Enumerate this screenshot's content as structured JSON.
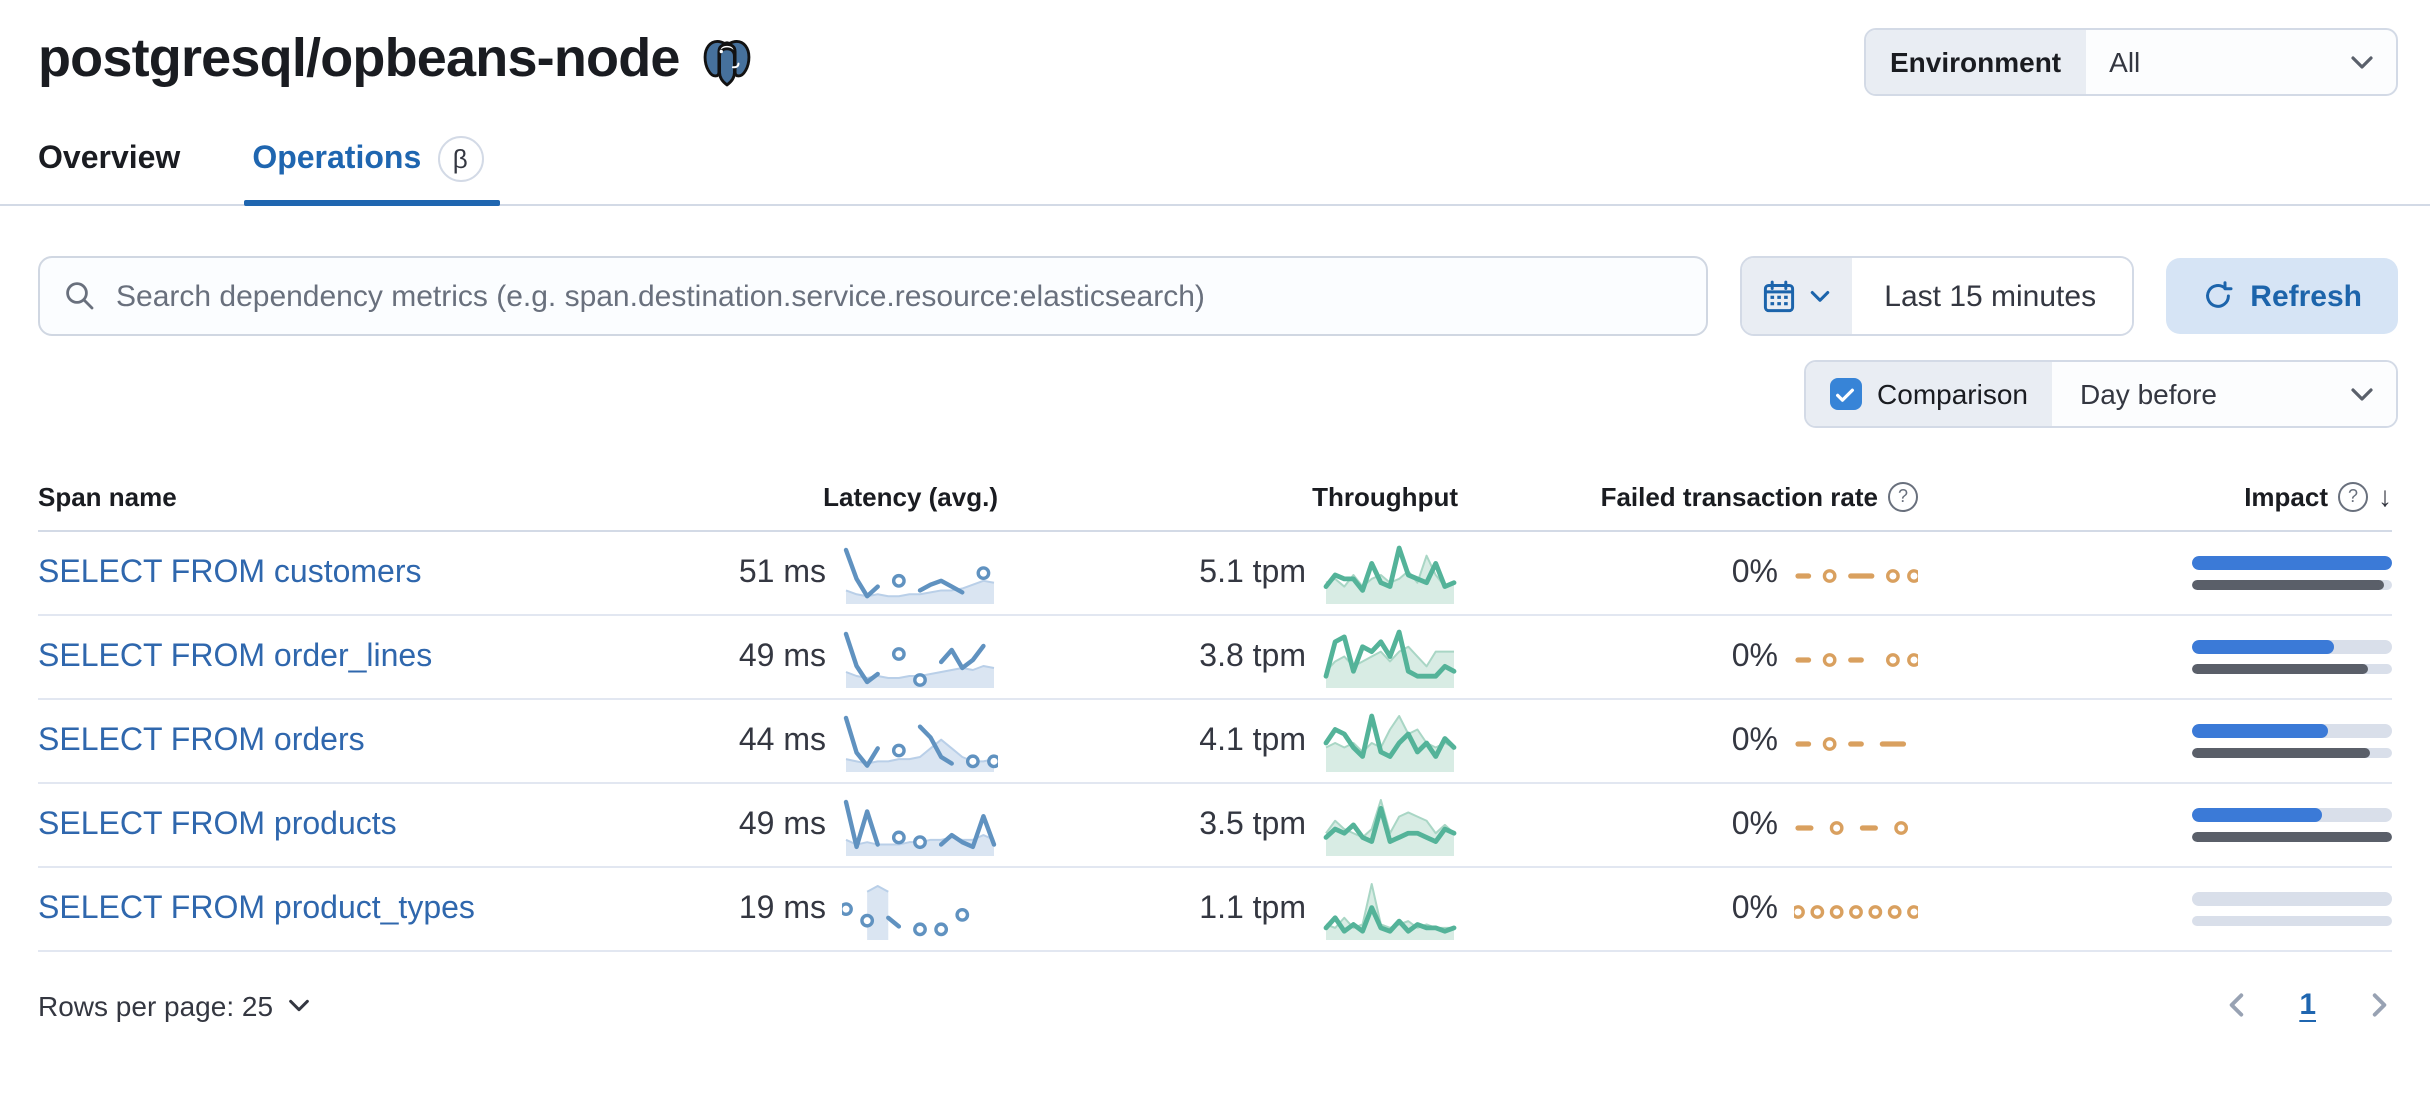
{
  "page": {
    "title": "postgresql/opbeans-node",
    "icon": "postgresql-elephant"
  },
  "header": {
    "environment_label": "Environment",
    "environment_value": "All"
  },
  "tabs": [
    {
      "label": "Overview",
      "active": false
    },
    {
      "label": "Operations",
      "active": true,
      "beta_label": "β"
    }
  ],
  "toolbar": {
    "search_placeholder": "Search dependency metrics (e.g. span.destination.service.resource:elasticsearch)",
    "time_range": "Last 15 minutes",
    "refresh_label": "Refresh",
    "comparison_label": "Comparison",
    "comparison_checked": true,
    "comparison_value": "Day before"
  },
  "table": {
    "columns": [
      "Span name",
      "Latency (avg.)",
      "Throughput",
      "Failed transaction rate",
      "Impact"
    ],
    "rows": [
      {
        "span_name": "SELECT FROM customers",
        "latency": "51 ms",
        "throughput": "5.1 tpm",
        "failed_rate": "0%",
        "impact": 1.0,
        "impact_prev": 0.96,
        "latency_spark": {
          "current": [
            27,
            12,
            3,
            8,
            null,
            11,
            null,
            6,
            9,
            11,
            8,
            5,
            null,
            15,
            null
          ],
          "comparison": [
            6,
            4,
            3,
            4,
            3,
            3,
            4,
            4,
            5,
            6,
            6,
            7,
            9,
            11,
            10
          ]
        },
        "throughput_spark": {
          "current": [
            4,
            7,
            6,
            6,
            3,
            10,
            5,
            4,
            14,
            7,
            6,
            5,
            10,
            4,
            5
          ],
          "comparison": [
            5,
            6,
            4,
            7,
            4,
            6,
            7,
            5,
            6,
            8,
            5,
            12,
            7,
            4,
            5
          ]
        },
        "failed_spark": {
          "current": [
            0,
            0,
            null,
            0,
            null,
            0,
            0,
            0,
            null,
            0,
            null,
            0
          ]
        }
      },
      {
        "span_name": "SELECT FROM order_lines",
        "latency": "49 ms",
        "throughput": "3.8 tpm",
        "failed_rate": "0%",
        "impact": 0.71,
        "impact_prev": 0.88,
        "latency_spark": {
          "current": [
            26,
            10,
            2,
            6,
            null,
            16,
            null,
            3,
            null,
            12,
            18,
            9,
            13,
            20,
            null
          ],
          "comparison": [
            7,
            5,
            4,
            5,
            4,
            4,
            5,
            5,
            6,
            7,
            8,
            9,
            8,
            10,
            9
          ]
        },
        "throughput_spark": {
          "current": [
            2,
            9,
            10,
            3,
            8,
            7,
            9,
            6,
            11,
            3,
            2,
            2,
            2,
            4,
            3
          ],
          "comparison": [
            3,
            5,
            6,
            4,
            5,
            6,
            7,
            5,
            7,
            8,
            6,
            4,
            7,
            7,
            7
          ]
        },
        "failed_spark": {
          "current": [
            0,
            0,
            null,
            0,
            null,
            0,
            0,
            null,
            null,
            0,
            null,
            0
          ]
        }
      },
      {
        "span_name": "SELECT FROM orders",
        "latency": "44 ms",
        "throughput": "4.1 tpm",
        "failed_rate": "0%",
        "impact": 0.68,
        "impact_prev": 0.89,
        "latency_spark": {
          "current": [
            24,
            8,
            2,
            10,
            null,
            9,
            null,
            20,
            15,
            6,
            3,
            null,
            4,
            null,
            4
          ],
          "comparison": [
            5,
            4,
            3,
            4,
            4,
            5,
            5,
            6,
            10,
            14,
            10,
            6,
            4,
            4,
            5
          ]
        },
        "throughput_spark": {
          "current": [
            6,
            9,
            8,
            5,
            3,
            12,
            4,
            3,
            6,
            8,
            4,
            6,
            3,
            7,
            5
          ],
          "comparison": [
            5,
            6,
            5,
            6,
            4,
            6,
            5,
            9,
            12,
            8,
            9,
            6,
            5,
            6,
            5
          ]
        },
        "failed_spark": {
          "current": [
            0,
            0,
            null,
            0,
            null,
            0,
            0,
            null,
            0,
            0,
            0,
            null
          ]
        }
      },
      {
        "span_name": "SELECT FROM products",
        "latency": "49 ms",
        "throughput": "3.5 tpm",
        "failed_rate": "0%",
        "impact": 0.65,
        "impact_prev": 1.0,
        "latency_spark": {
          "current": [
            22,
            3,
            18,
            4,
            null,
            7,
            null,
            5,
            null,
            4,
            8,
            5,
            3,
            16,
            4
          ],
          "comparison": [
            6,
            4,
            5,
            4,
            4,
            4,
            5,
            5,
            6,
            6,
            7,
            6,
            6,
            8,
            6
          ]
        },
        "throughput_spark": {
          "current": [
            4,
            6,
            5,
            7,
            4,
            3,
            11,
            3,
            4,
            5,
            5,
            4,
            3,
            6,
            5
          ],
          "comparison": [
            5,
            8,
            6,
            5,
            4,
            6,
            13,
            5,
            9,
            10,
            9,
            8,
            5,
            7,
            5
          ]
        },
        "failed_spark": {
          "current": [
            0,
            0,
            null,
            0,
            null,
            0,
            0,
            null,
            0,
            null
          ]
        }
      },
      {
        "span_name": "SELECT FROM product_types",
        "latency": "19 ms",
        "throughput": "1.1 tpm",
        "failed_rate": "0%",
        "impact": 0.0,
        "impact_prev": 0.0,
        "latency_spark": {
          "current": [
            10,
            null,
            6,
            null,
            7,
            4,
            null,
            3,
            null,
            3,
            null,
            8,
            null,
            null,
            null
          ],
          "comparison": [
            null,
            null,
            16,
            18,
            16,
            null,
            null,
            null,
            null,
            null,
            null,
            null,
            null,
            null,
            null
          ]
        },
        "throughput_spark": {
          "current": [
            3,
            6,
            2,
            4,
            2,
            9,
            3,
            2,
            5,
            2,
            4,
            3,
            3,
            2,
            3
          ],
          "comparison": [
            4,
            3,
            6,
            3,
            4,
            16,
            4,
            3,
            4,
            5,
            3,
            4,
            3,
            3,
            3
          ]
        },
        "failed_spark": {
          "current": [
            0,
            null,
            0,
            null,
            0,
            null,
            0,
            null,
            0,
            null,
            0,
            null,
            0
          ]
        }
      }
    ]
  },
  "footer": {
    "rows_per_page_label": "Rows per page: 25",
    "page": "1"
  },
  "colors": {
    "link": "#2f67ad",
    "primary": "#1c64ab",
    "tab_active": "#1f66b0",
    "latency_spark": "#6092C0",
    "latency_fill": "#dae5f2",
    "latency_comp_line": "#b9cfe8",
    "throughput_spark": "#54B399",
    "throughput_fill": "#d8ece4",
    "throughput_comp_line": "#a9d6c5",
    "failed_spark": "#d9a05f",
    "impact_bar": "#3b7ad7",
    "impact_prev_bar": "#5a5f69",
    "impact_track": "#d9dfea",
    "checkbox": "#3784d7",
    "refresh_bg": "#d6e4f5",
    "border": "#d3dae6"
  }
}
